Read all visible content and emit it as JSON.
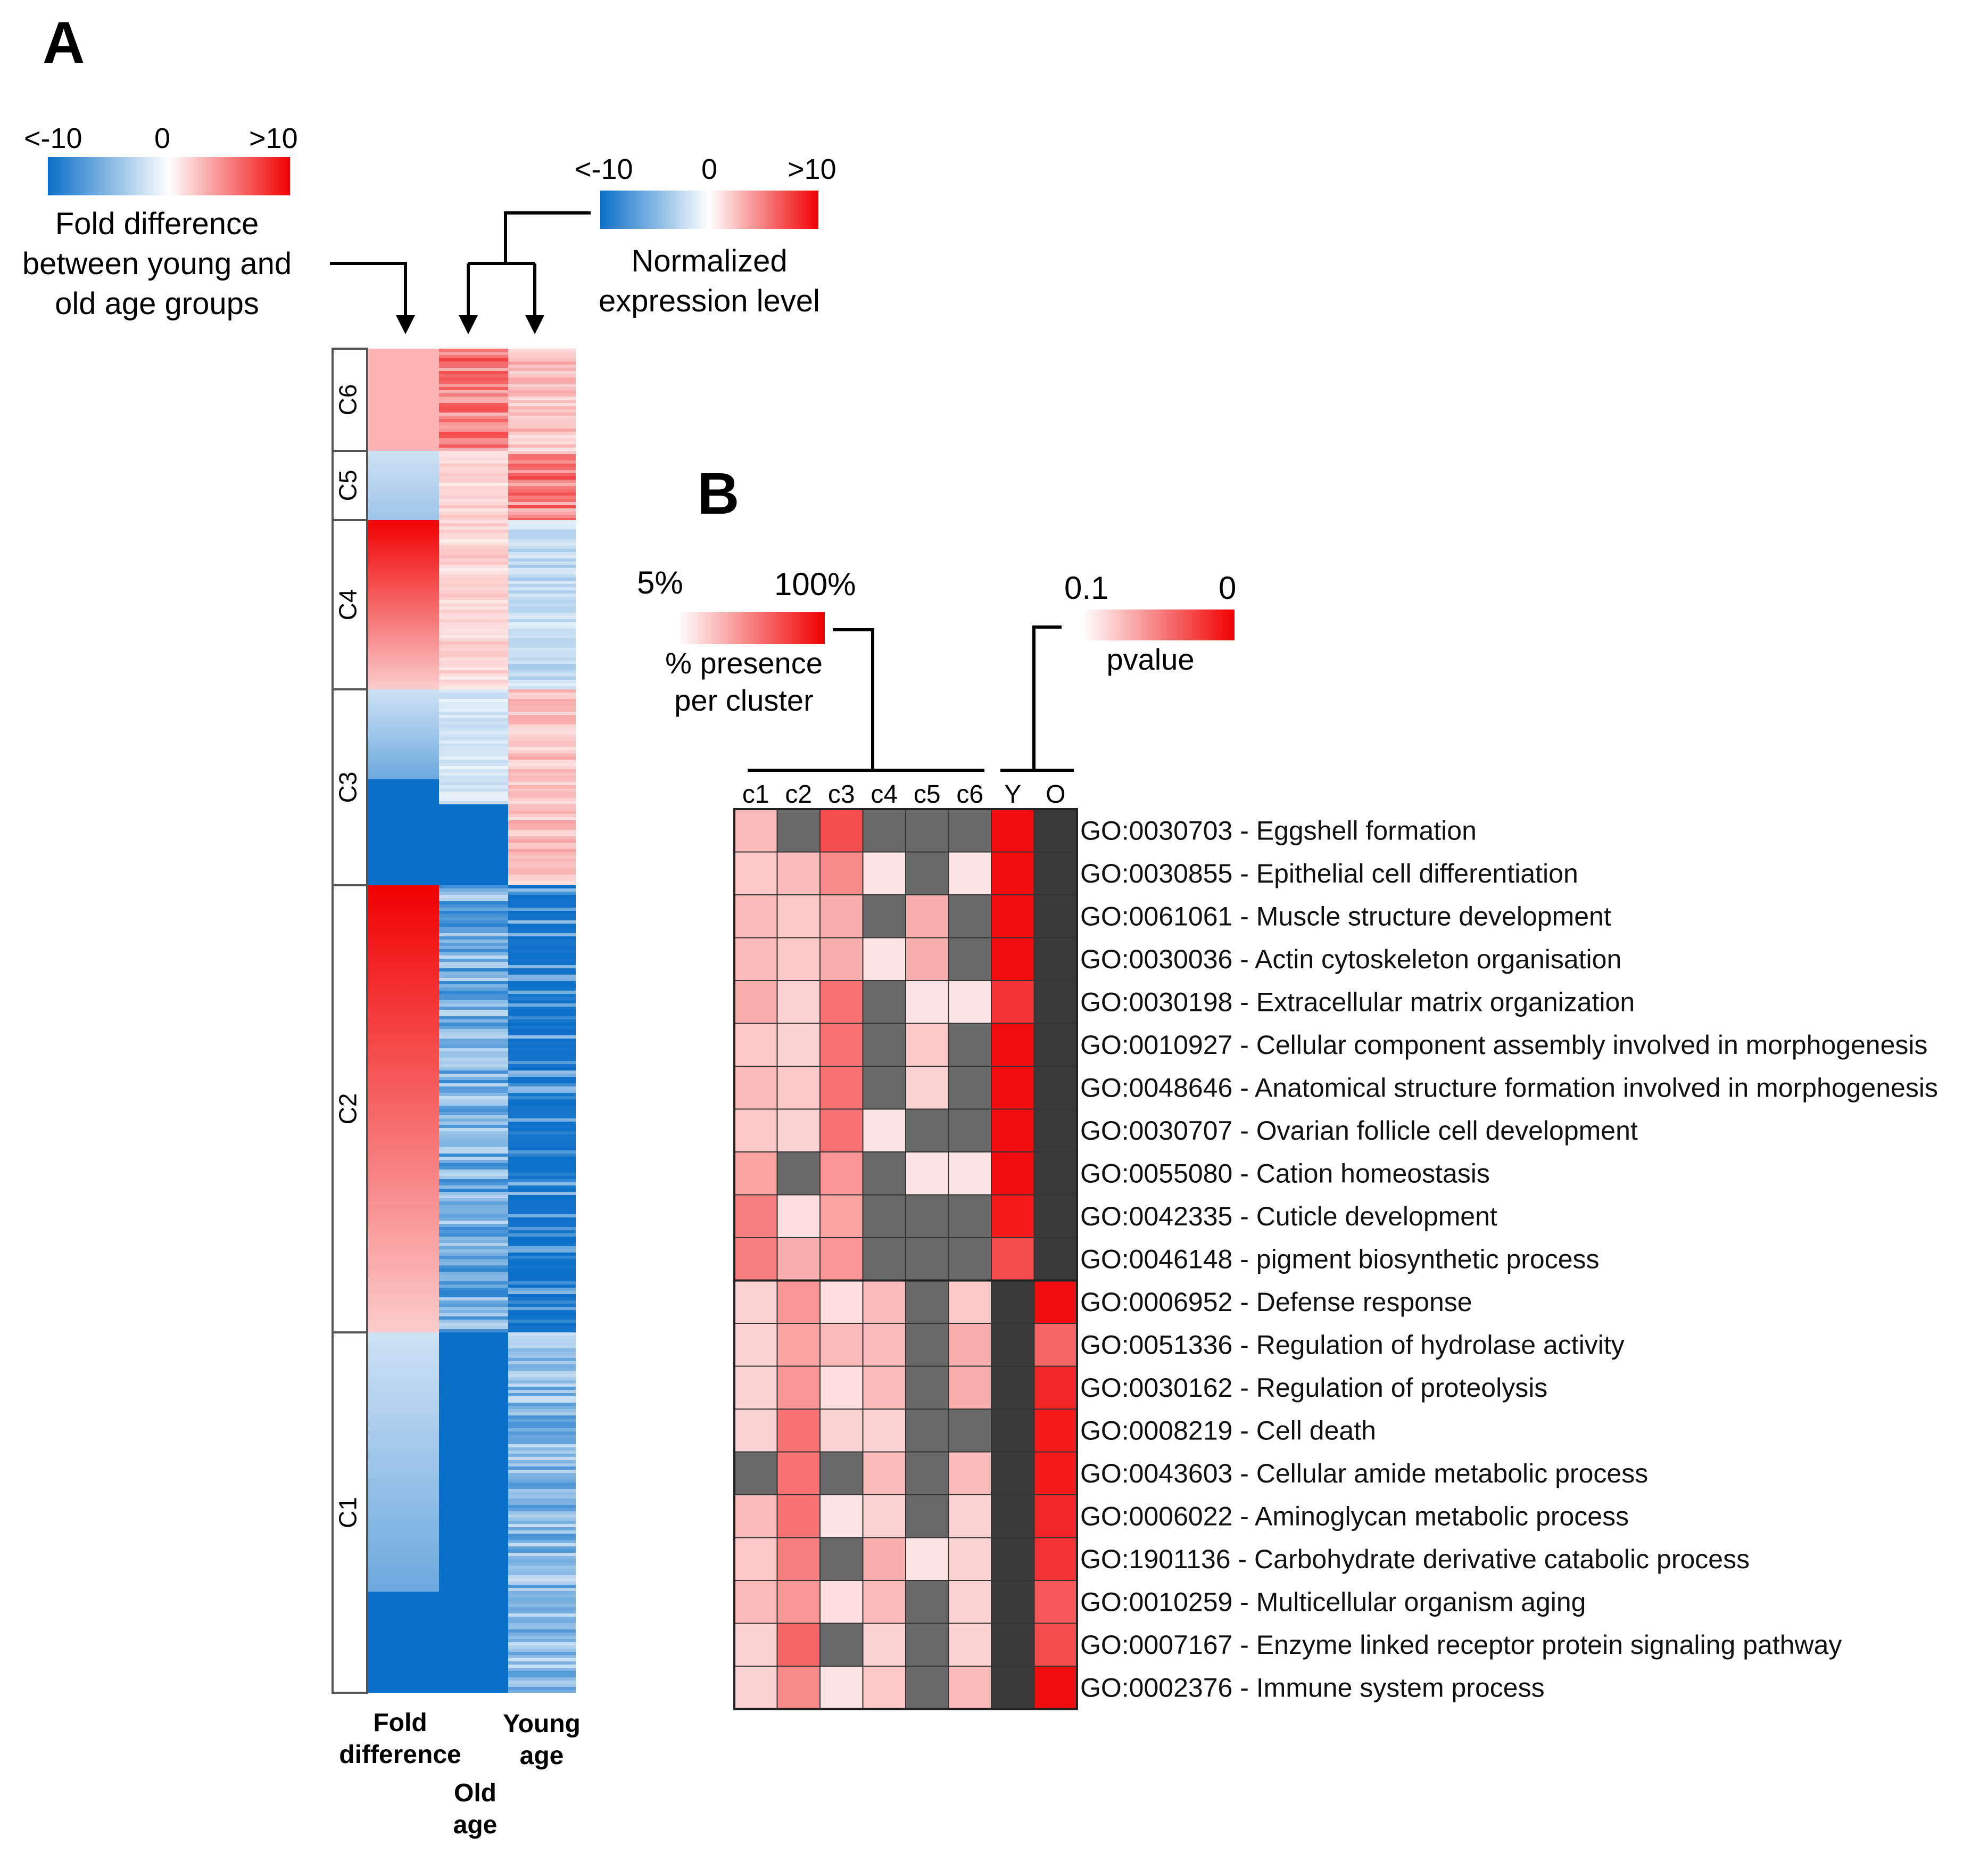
{
  "panel_a": {
    "label": "A",
    "fold_scale": {
      "min_label": "<-10",
      "mid_label": "0",
      "max_label": ">10"
    },
    "fold_caption": [
      "Fold difference",
      "between young and",
      "old age groups"
    ],
    "expr_scale": {
      "min_label": "<-10",
      "mid_label": "0",
      "max_label": ">10"
    },
    "expr_caption": [
      "Normalized",
      "expression level"
    ],
    "clusters": [
      "C6",
      "C5",
      "C4",
      "C3",
      "C2",
      "C1"
    ],
    "columns": {
      "fold": [
        "Fold",
        "difference"
      ],
      "old": [
        "Old",
        "age"
      ],
      "young": [
        "Young",
        "age"
      ]
    }
  },
  "panel_b": {
    "label": "B",
    "presence_scale": {
      "min_label": "5%",
      "max_label": "100%",
      "caption": [
        "% presence",
        "per cluster"
      ]
    },
    "pvalue_scale": {
      "min_label": "0.1",
      "max_label": "0",
      "caption": "pvalue"
    },
    "column_labels": [
      "c1",
      "c2",
      "c3",
      "c4",
      "c5",
      "c6",
      "Y",
      "O"
    ],
    "colors": {
      "absent": "#686868",
      "nonsig": "#3a3a3a",
      "red": "#f00000",
      "blue": "#0a6fc9"
    },
    "rows": [
      {
        "term": "GO:0030703 - Eggshell formation"
      },
      {
        "term": "GO:0030855 - Epithelial cell differentiation"
      },
      {
        "term": "GO:0061061 - Muscle structure development"
      },
      {
        "term": "GO:0030036 - Actin cytoskeleton organisation"
      },
      {
        "term": "GO:0030198 - Extracellular matrix organization"
      },
      {
        "term": "GO:0010927 - Cellular component assembly involved in morphogenesis"
      },
      {
        "term": "GO:0048646 - Anatomical structure formation involved in morphogenesis"
      },
      {
        "term": "GO:0030707 - Ovarian follicle cell development"
      },
      {
        "term": "GO:0055080 - Cation homeostasis"
      },
      {
        "term": "GO:0042335 - Cuticle development"
      },
      {
        "term": "GO:0046148 - pigment biosynthetic process"
      },
      {
        "term": "GO:0006952 - Defense response"
      },
      {
        "term": "GO:0051336 - Regulation of hydrolase activity"
      },
      {
        "term": "GO:0030162 - Regulation of proteolysis"
      },
      {
        "term": "GO:0008219 - Cell death"
      },
      {
        "term": "GO:0043603 - Cellular amide metabolic process"
      },
      {
        "term": "GO:0006022 - Aminoglycan metabolic process"
      },
      {
        "term": "GO:1901136 - Carbohydrate derivative catabolic process"
      },
      {
        "term": "GO:0010259 - Multicellular organism aging"
      },
      {
        "term": "GO:0007167 - Enzyme linked receptor protein signaling pathway"
      },
      {
        "term": "GO:0002376 - Immune system process"
      }
    ]
  },
  "chart_data": [
    {
      "type": "heatmap",
      "title": "A",
      "scale_fold": "Fold difference between young and old age groups (<-10 to >10)",
      "scale_expression": "Normalized expression level (<-10 to >10)",
      "columns": [
        "Fold difference",
        "Old age",
        "Young age"
      ],
      "clusters": [
        {
          "name": "C6",
          "fold_pattern": "uniform",
          "fold": [
            3,
            3
          ],
          "old": 6,
          "young": 3
        },
        {
          "name": "C5",
          "fold_pattern": "uniform",
          "fold": [
            -2,
            -4
          ],
          "old": 2,
          "young": 6
        },
        {
          "name": "C4",
          "fold_pattern": "uniform",
          "fold": [
            10,
            2
          ],
          "old": 2,
          "young": -3
        },
        {
          "name": "C3",
          "fold_pattern": "split",
          "fold": [
            -2,
            -6
          ],
          "split_frac": 0.46,
          "low_fold": -10,
          "old_pattern": "split",
          "old": -2,
          "old_low": -10,
          "young": 3
        },
        {
          "name": "C2",
          "fold_pattern": "uniform",
          "fold": [
            10,
            2
          ],
          "old": -7,
          "young": -10
        },
        {
          "name": "C1",
          "fold_pattern": "split",
          "fold": [
            -2,
            -6
          ],
          "split_frac": 0.72,
          "low_fold": -10,
          "old_pattern": "solid",
          "old": -10,
          "young": -6
        }
      ]
    },
    {
      "type": "heatmap",
      "title": "B",
      "scale_presence": "% presence per cluster (5% to 100%)",
      "scale_pvalue": "pvalue (0.1 to 0)",
      "columns": [
        "c1",
        "c2",
        "c3",
        "c4",
        "c5",
        "c6",
        "Y",
        "O"
      ],
      "notes": "presence values in percent (null = absent); pvalue: null = not significant",
      "presence": [
        [
          25,
          null,
          70,
          null,
          null,
          null
        ],
        [
          20,
          25,
          45,
          8,
          null,
          8
        ],
        [
          25,
          20,
          30,
          null,
          30,
          null
        ],
        [
          25,
          20,
          30,
          8,
          30,
          null
        ],
        [
          30,
          15,
          55,
          null,
          8,
          8
        ],
        [
          20,
          15,
          55,
          null,
          20,
          null
        ],
        [
          25,
          20,
          55,
          null,
          15,
          null
        ],
        [
          20,
          15,
          55,
          8,
          null,
          null
        ],
        [
          35,
          null,
          40,
          null,
          8,
          8
        ],
        [
          50,
          10,
          35,
          null,
          null,
          null
        ],
        [
          50,
          30,
          40,
          null,
          null,
          null
        ],
        [
          15,
          40,
          10,
          25,
          null,
          20
        ],
        [
          15,
          35,
          25,
          25,
          null,
          30
        ],
        [
          15,
          40,
          10,
          25,
          null,
          30
        ],
        [
          15,
          55,
          15,
          15,
          null,
          null
        ],
        [
          null,
          55,
          null,
          25,
          null,
          25
        ],
        [
          25,
          55,
          8,
          15,
          null,
          15
        ],
        [
          20,
          50,
          null,
          30,
          8,
          15
        ],
        [
          25,
          40,
          10,
          25,
          null,
          15
        ],
        [
          15,
          60,
          null,
          15,
          null,
          15
        ],
        [
          15,
          45,
          8,
          20,
          null,
          25
        ]
      ],
      "pvalue": [
        [
          0.005,
          null
        ],
        [
          0.005,
          null
        ],
        [
          0.005,
          null
        ],
        [
          0.005,
          null
        ],
        [
          0.02,
          null
        ],
        [
          0.005,
          null
        ],
        [
          0.005,
          null
        ],
        [
          0.005,
          null
        ],
        [
          0.005,
          null
        ],
        [
          0.01,
          null
        ],
        [
          0.03,
          null
        ],
        [
          null,
          0.005
        ],
        [
          null,
          0.04
        ],
        [
          null,
          0.015
        ],
        [
          null,
          0.01
        ],
        [
          null,
          0.01
        ],
        [
          null,
          0.015
        ],
        [
          null,
          0.02
        ],
        [
          null,
          0.035
        ],
        [
          null,
          0.03
        ],
        [
          null,
          0.005
        ]
      ]
    }
  ]
}
